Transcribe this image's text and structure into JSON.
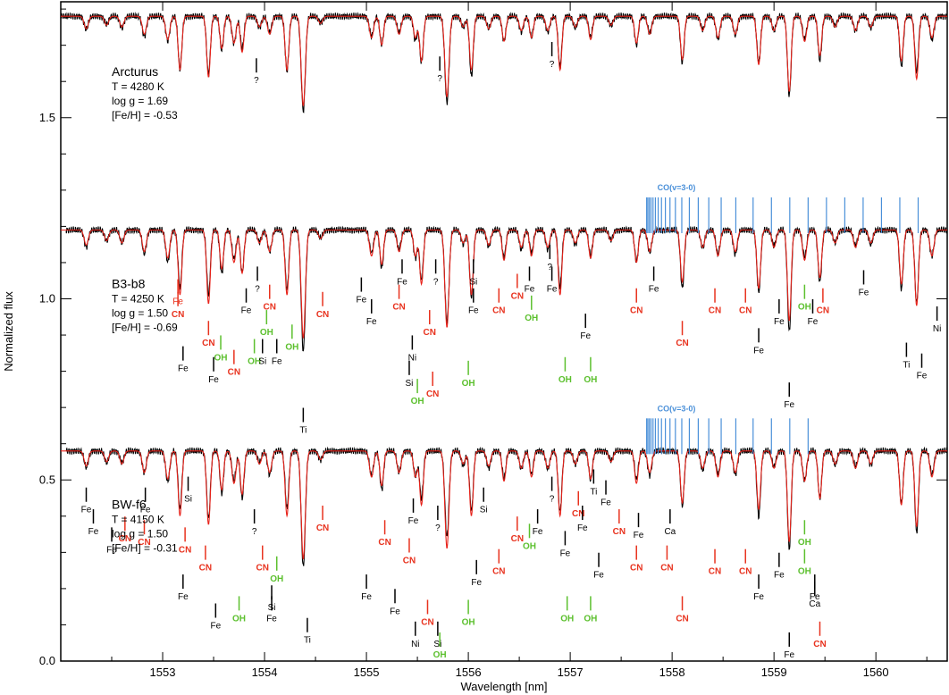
{
  "chart_data": {
    "type": "line",
    "xlabel": "Wavelength [nm]",
    "ylabel": "Normalized flux",
    "xlim": [
      1552.0,
      1560.7
    ],
    "ylim": [
      0.0,
      1.82
    ],
    "xticks": [
      1553,
      1554,
      1555,
      1556,
      1557,
      1558,
      1559,
      1560
    ],
    "yticks": [
      0.0,
      0.5,
      1.0,
      1.5
    ],
    "ytick_labels": [
      "0.0",
      "0.5",
      "1.0",
      "1.5"
    ],
    "grid": false,
    "colors": {
      "observed": "#000000",
      "synthetic": "#e8221a",
      "CN": "#e8321e",
      "OH": "#5cc02e",
      "CO": "#4a90d9",
      "element": "#000000"
    },
    "stars": [
      {
        "name": "Arcturus",
        "temperature": "T = 4280 K",
        "logg": "log g = 1.69",
        "feh": "[Fe/H] = -0.53",
        "continuum": 1.78,
        "depth_scale": 1.0
      },
      {
        "name": "B3-b8",
        "temperature": "T = 4250 K",
        "logg": "log g = 1.50",
        "feh": "[Fe/H] = -0.69",
        "continuum": 1.19,
        "depth_scale": 1.15
      },
      {
        "name": "BW-f6",
        "temperature": "T = 4150 K",
        "logg": "log g = 1.50",
        "feh": "[Fe/H] = -0.31",
        "continuum": 0.58,
        "depth_scale": 1.15
      }
    ],
    "absorption_lines": [
      [
        1552.25,
        0.07,
        0.02
      ],
      [
        1552.45,
        0.05,
        0.02
      ],
      [
        1552.6,
        0.06,
        0.02
      ],
      [
        1552.82,
        0.1,
        0.02
      ],
      [
        1553.05,
        0.13,
        0.02
      ],
      [
        1553.17,
        0.3,
        0.018
      ],
      [
        1553.45,
        0.34,
        0.018
      ],
      [
        1553.58,
        0.18,
        0.018
      ],
      [
        1553.7,
        0.15,
        0.02
      ],
      [
        1553.78,
        0.2,
        0.018
      ],
      [
        1553.95,
        0.06,
        0.02
      ],
      [
        1554.05,
        0.1,
        0.02
      ],
      [
        1554.22,
        0.3,
        0.018
      ],
      [
        1554.38,
        0.5,
        0.02
      ],
      [
        1554.55,
        0.04,
        0.02
      ],
      [
        1555.05,
        0.12,
        0.02
      ],
      [
        1555.15,
        0.16,
        0.018
      ],
      [
        1555.32,
        0.1,
        0.02
      ],
      [
        1555.48,
        0.12,
        0.018
      ],
      [
        1555.54,
        0.25,
        0.018
      ],
      [
        1555.79,
        0.45,
        0.02
      ],
      [
        1555.95,
        0.06,
        0.02
      ],
      [
        1556.03,
        0.3,
        0.018
      ],
      [
        1556.2,
        0.07,
        0.02
      ],
      [
        1556.35,
        0.14,
        0.018
      ],
      [
        1556.52,
        0.08,
        0.02
      ],
      [
        1556.62,
        0.12,
        0.018
      ],
      [
        1556.78,
        0.08,
        0.02
      ],
      [
        1556.9,
        0.3,
        0.018
      ],
      [
        1557.05,
        0.06,
        0.02
      ],
      [
        1557.2,
        0.13,
        0.018
      ],
      [
        1557.4,
        0.05,
        0.02
      ],
      [
        1557.65,
        0.15,
        0.018
      ],
      [
        1557.78,
        0.1,
        0.02
      ],
      [
        1558.1,
        0.24,
        0.018
      ],
      [
        1558.3,
        0.08,
        0.02
      ],
      [
        1558.45,
        0.12,
        0.02
      ],
      [
        1558.62,
        0.1,
        0.02
      ],
      [
        1558.85,
        0.27,
        0.018
      ],
      [
        1559.0,
        0.08,
        0.02
      ],
      [
        1559.15,
        0.42,
        0.018
      ],
      [
        1559.3,
        0.14,
        0.02
      ],
      [
        1559.45,
        0.22,
        0.018
      ],
      [
        1559.6,
        0.06,
        0.02
      ],
      [
        1559.8,
        0.08,
        0.02
      ],
      [
        1559.95,
        0.06,
        0.02
      ],
      [
        1560.25,
        0.25,
        0.018
      ],
      [
        1560.4,
        0.35,
        0.018
      ],
      [
        1560.55,
        0.12,
        0.02
      ]
    ],
    "question_marks": [
      "?",
      "?",
      "?",
      "?",
      "?",
      "?",
      "?",
      "?"
    ],
    "co_band_label": "CO(v=3-0)",
    "labels": {
      "element_names": [
        "Fe",
        "Si",
        "Ni",
        "Ti",
        "Ca",
        "Fe"
      ],
      "molecules": [
        "CN",
        "OH"
      ]
    },
    "annotations": [
      {
        "text": "?",
        "x": 1553.92,
        "y": 1.595,
        "color": "element"
      },
      {
        "text": "?",
        "x": 1555.72,
        "y": 1.6,
        "color": "element"
      },
      {
        "text": "?",
        "x": 1556.82,
        "y": 1.64,
        "color": "element"
      },
      {
        "text": "Fe",
        "x": 1553.15,
        "y": 0.985,
        "color": "CN"
      },
      {
        "text": "CN",
        "x": 1553.15,
        "y": 0.95,
        "color": "CN"
      },
      {
        "text": "Fe",
        "x": 1553.2,
        "y": 0.8,
        "color": "element"
      },
      {
        "text": "CN",
        "x": 1553.45,
        "y": 0.87,
        "color": "CN"
      },
      {
        "text": "OH",
        "x": 1553.57,
        "y": 0.83,
        "color": "OH"
      },
      {
        "text": "Fe",
        "x": 1553.5,
        "y": 0.77,
        "color": "element"
      },
      {
        "text": "CN",
        "x": 1553.7,
        "y": 0.79,
        "color": "CN"
      },
      {
        "text": "Fe",
        "x": 1553.82,
        "y": 0.96,
        "color": "element"
      },
      {
        "text": "OH",
        "x": 1553.9,
        "y": 0.82,
        "color": "OH"
      },
      {
        "text": "?",
        "x": 1553.93,
        "y": 1.02,
        "color": "element"
      },
      {
        "text": "CN",
        "x": 1554.05,
        "y": 0.97,
        "color": "CN"
      },
      {
        "text": "OH",
        "x": 1554.02,
        "y": 0.9,
        "color": "OH"
      },
      {
        "text": "Si",
        "x": 1553.98,
        "y": 0.82,
        "color": "element"
      },
      {
        "text": "Fe",
        "x": 1554.12,
        "y": 0.82,
        "color": "element"
      },
      {
        "text": "OH",
        "x": 1554.27,
        "y": 0.86,
        "color": "OH"
      },
      {
        "text": "CN",
        "x": 1554.57,
        "y": 0.95,
        "color": "CN"
      },
      {
        "text": "Ti",
        "x": 1554.38,
        "y": 0.63,
        "color": "element"
      },
      {
        "text": "Fe",
        "x": 1554.95,
        "y": 0.99,
        "color": "element"
      },
      {
        "text": "Fe",
        "x": 1555.05,
        "y": 0.93,
        "color": "element"
      },
      {
        "text": "Fe",
        "x": 1555.35,
        "y": 1.04,
        "color": "element"
      },
      {
        "text": "CN",
        "x": 1555.32,
        "y": 0.97,
        "color": "CN"
      },
      {
        "text": "?",
        "x": 1555.68,
        "y": 1.04,
        "color": "element"
      },
      {
        "text": "CN",
        "x": 1555.62,
        "y": 0.9,
        "color": "CN"
      },
      {
        "text": "Ni",
        "x": 1555.45,
        "y": 0.83,
        "color": "element"
      },
      {
        "text": "Si",
        "x": 1555.42,
        "y": 0.76,
        "color": "element"
      },
      {
        "text": "CN",
        "x": 1555.65,
        "y": 0.73,
        "color": "CN"
      },
      {
        "text": "OH",
        "x": 1555.5,
        "y": 0.71,
        "color": "OH"
      },
      {
        "text": "OH",
        "x": 1556.0,
        "y": 0.76,
        "color": "OH"
      },
      {
        "text": "Si",
        "x": 1556.05,
        "y": 1.04,
        "color": "element"
      },
      {
        "text": "Fe",
        "x": 1556.05,
        "y": 0.96,
        "color": "element"
      },
      {
        "text": "CN",
        "x": 1556.3,
        "y": 0.96,
        "color": "CN"
      },
      {
        "text": "CN",
        "x": 1556.48,
        "y": 1.0,
        "color": "CN"
      },
      {
        "text": "Fe",
        "x": 1556.6,
        "y": 1.02,
        "color": "element"
      },
      {
        "text": "OH",
        "x": 1556.62,
        "y": 0.94,
        "color": "OH"
      },
      {
        "text": "Fe",
        "x": 1556.82,
        "y": 1.02,
        "color": "element"
      },
      {
        "text": "?",
        "x": 1556.8,
        "y": 1.08,
        "color": "element"
      },
      {
        "text": "OH",
        "x": 1556.95,
        "y": 0.77,
        "color": "OH"
      },
      {
        "text": "Fe",
        "x": 1557.15,
        "y": 0.89,
        "color": "element"
      },
      {
        "text": "OH",
        "x": 1557.2,
        "y": 0.77,
        "color": "OH"
      },
      {
        "text": "CN",
        "x": 1557.65,
        "y": 0.96,
        "color": "CN"
      },
      {
        "text": "Fe",
        "x": 1557.82,
        "y": 1.02,
        "color": "element"
      },
      {
        "text": "CN",
        "x": 1558.1,
        "y": 0.87,
        "color": "CN"
      },
      {
        "text": "CN",
        "x": 1558.42,
        "y": 0.96,
        "color": "CN"
      },
      {
        "text": "CN",
        "x": 1558.72,
        "y": 0.96,
        "color": "CN"
      },
      {
        "text": "Fe",
        "x": 1558.85,
        "y": 0.85,
        "color": "element"
      },
      {
        "text": "Fe",
        "x": 1559.05,
        "y": 0.93,
        "color": "element"
      },
      {
        "text": "Fe",
        "x": 1559.15,
        "y": 0.7,
        "color": "element"
      },
      {
        "text": "OH",
        "x": 1559.3,
        "y": 0.97,
        "color": "OH"
      },
      {
        "text": "Fe",
        "x": 1559.38,
        "y": 0.93,
        "color": "element"
      },
      {
        "text": "CN",
        "x": 1559.48,
        "y": 0.96,
        "color": "CN"
      },
      {
        "text": "Fe",
        "x": 1559.88,
        "y": 1.01,
        "color": "element"
      },
      {
        "text": "Ti",
        "x": 1560.3,
        "y": 0.81,
        "color": "element"
      },
      {
        "text": "Fe",
        "x": 1560.45,
        "y": 0.78,
        "color": "element"
      },
      {
        "text": "Ni",
        "x": 1560.6,
        "y": 0.91,
        "color": "element"
      },
      {
        "text": "Fe",
        "x": 1552.25,
        "y": 0.41,
        "color": "element"
      },
      {
        "text": "Fe",
        "x": 1552.32,
        "y": 0.35,
        "color": "element"
      },
      {
        "text": "Fe",
        "x": 1552.5,
        "y": 0.3,
        "color": "element"
      },
      {
        "text": "CN",
        "x": 1552.63,
        "y": 0.33,
        "color": "CN"
      },
      {
        "text": "Fe",
        "x": 1552.83,
        "y": 0.41,
        "color": "element"
      },
      {
        "text": "CN",
        "x": 1552.82,
        "y": 0.32,
        "color": "CN"
      },
      {
        "text": "Si",
        "x": 1553.25,
        "y": 0.44,
        "color": "element"
      },
      {
        "text": "CN",
        "x": 1553.22,
        "y": 0.3,
        "color": "CN"
      },
      {
        "text": "Fe",
        "x": 1553.2,
        "y": 0.17,
        "color": "element"
      },
      {
        "text": "CN",
        "x": 1553.42,
        "y": 0.25,
        "color": "CN"
      },
      {
        "text": "Fe",
        "x": 1553.52,
        "y": 0.09,
        "color": "element"
      },
      {
        "text": "OH",
        "x": 1553.75,
        "y": 0.11,
        "color": "OH"
      },
      {
        "text": "?",
        "x": 1553.9,
        "y": 0.35,
        "color": "element"
      },
      {
        "text": "CN",
        "x": 1553.98,
        "y": 0.25,
        "color": "CN"
      },
      {
        "text": "OH",
        "x": 1554.12,
        "y": 0.22,
        "color": "OH"
      },
      {
        "text": "Si",
        "x": 1554.07,
        "y": 0.14,
        "color": "element"
      },
      {
        "text": "Fe",
        "x": 1554.07,
        "y": 0.11,
        "color": "element"
      },
      {
        "text": "CN",
        "x": 1554.57,
        "y": 0.36,
        "color": "CN"
      },
      {
        "text": "Ti",
        "x": 1554.42,
        "y": 0.05,
        "color": "element"
      },
      {
        "text": "CN",
        "x": 1555.18,
        "y": 0.32,
        "color": "CN"
      },
      {
        "text": "Fe",
        "x": 1555.0,
        "y": 0.17,
        "color": "element"
      },
      {
        "text": "Fe",
        "x": 1555.28,
        "y": 0.13,
        "color": "element"
      },
      {
        "text": "Fe",
        "x": 1555.46,
        "y": 0.38,
        "color": "element"
      },
      {
        "text": "?",
        "x": 1555.7,
        "y": 0.36,
        "color": "element"
      },
      {
        "text": "CN",
        "x": 1555.42,
        "y": 0.27,
        "color": "CN"
      },
      {
        "text": "CN",
        "x": 1555.6,
        "y": 0.1,
        "color": "CN"
      },
      {
        "text": "Ni",
        "x": 1555.48,
        "y": 0.04,
        "color": "element"
      },
      {
        "text": "Si",
        "x": 1555.7,
        "y": 0.04,
        "color": "element"
      },
      {
        "text": "OH",
        "x": 1555.72,
        "y": 0.01,
        "color": "OH"
      },
      {
        "text": "Fe",
        "x": 1556.08,
        "y": 0.21,
        "color": "element"
      },
      {
        "text": "OH",
        "x": 1556.0,
        "y": 0.1,
        "color": "OH"
      },
      {
        "text": "Si",
        "x": 1556.15,
        "y": 0.41,
        "color": "element"
      },
      {
        "text": "CN",
        "x": 1556.3,
        "y": 0.24,
        "color": "CN"
      },
      {
        "text": "CN",
        "x": 1556.48,
        "y": 0.33,
        "color": "CN"
      },
      {
        "text": "OH",
        "x": 1556.6,
        "y": 0.31,
        "color": "OH"
      },
      {
        "text": "Fe",
        "x": 1556.68,
        "y": 0.35,
        "color": "element"
      },
      {
        "text": "?",
        "x": 1556.82,
        "y": 0.44,
        "color": "element"
      },
      {
        "text": "Fe",
        "x": 1556.95,
        "y": 0.29,
        "color": "element"
      },
      {
        "text": "OH",
        "x": 1556.97,
        "y": 0.11,
        "color": "OH"
      },
      {
        "text": "CN",
        "x": 1557.08,
        "y": 0.4,
        "color": "CN"
      },
      {
        "text": "Fe",
        "x": 1557.12,
        "y": 0.36,
        "color": "element"
      },
      {
        "text": "Ti",
        "x": 1557.23,
        "y": 0.46,
        "color": "element"
      },
      {
        "text": "Fe",
        "x": 1557.35,
        "y": 0.43,
        "color": "element"
      },
      {
        "text": "Fe",
        "x": 1557.28,
        "y": 0.23,
        "color": "element"
      },
      {
        "text": "OH",
        "x": 1557.2,
        "y": 0.11,
        "color": "OH"
      },
      {
        "text": "CN",
        "x": 1557.48,
        "y": 0.35,
        "color": "CN"
      },
      {
        "text": "Fe",
        "x": 1557.67,
        "y": 0.34,
        "color": "element"
      },
      {
        "text": "CN",
        "x": 1557.65,
        "y": 0.25,
        "color": "CN"
      },
      {
        "text": "Ca",
        "x": 1557.98,
        "y": 0.35,
        "color": "element"
      },
      {
        "text": "CN",
        "x": 1557.95,
        "y": 0.25,
        "color": "CN"
      },
      {
        "text": "CN",
        "x": 1558.1,
        "y": 0.11,
        "color": "CN"
      },
      {
        "text": "CN",
        "x": 1558.42,
        "y": 0.24,
        "color": "CN"
      },
      {
        "text": "CN",
        "x": 1558.72,
        "y": 0.24,
        "color": "CN"
      },
      {
        "text": "Fe",
        "x": 1558.85,
        "y": 0.17,
        "color": "element"
      },
      {
        "text": "Fe",
        "x": 1559.05,
        "y": 0.23,
        "color": "element"
      },
      {
        "text": "Fe",
        "x": 1559.15,
        "y": 0.01,
        "color": "element"
      },
      {
        "text": "OH",
        "x": 1559.3,
        "y": 0.32,
        "color": "OH"
      },
      {
        "text": "OH",
        "x": 1559.3,
        "y": 0.24,
        "color": "OH"
      },
      {
        "text": "Fe",
        "x": 1559.4,
        "y": 0.17,
        "color": "element"
      },
      {
        "text": "Ca",
        "x": 1559.4,
        "y": 0.15,
        "color": "element"
      },
      {
        "text": "CN",
        "x": 1559.45,
        "y": 0.04,
        "color": "CN"
      }
    ],
    "co_bands": [
      {
        "label": "CO(v=3-0)",
        "y": 1.28,
        "x_start": 1557.75,
        "x_end": 1560.45
      },
      {
        "label": "CO(v=3-0)",
        "y": 0.67,
        "x_start": 1557.75,
        "x_end": 1559.4
      }
    ]
  }
}
